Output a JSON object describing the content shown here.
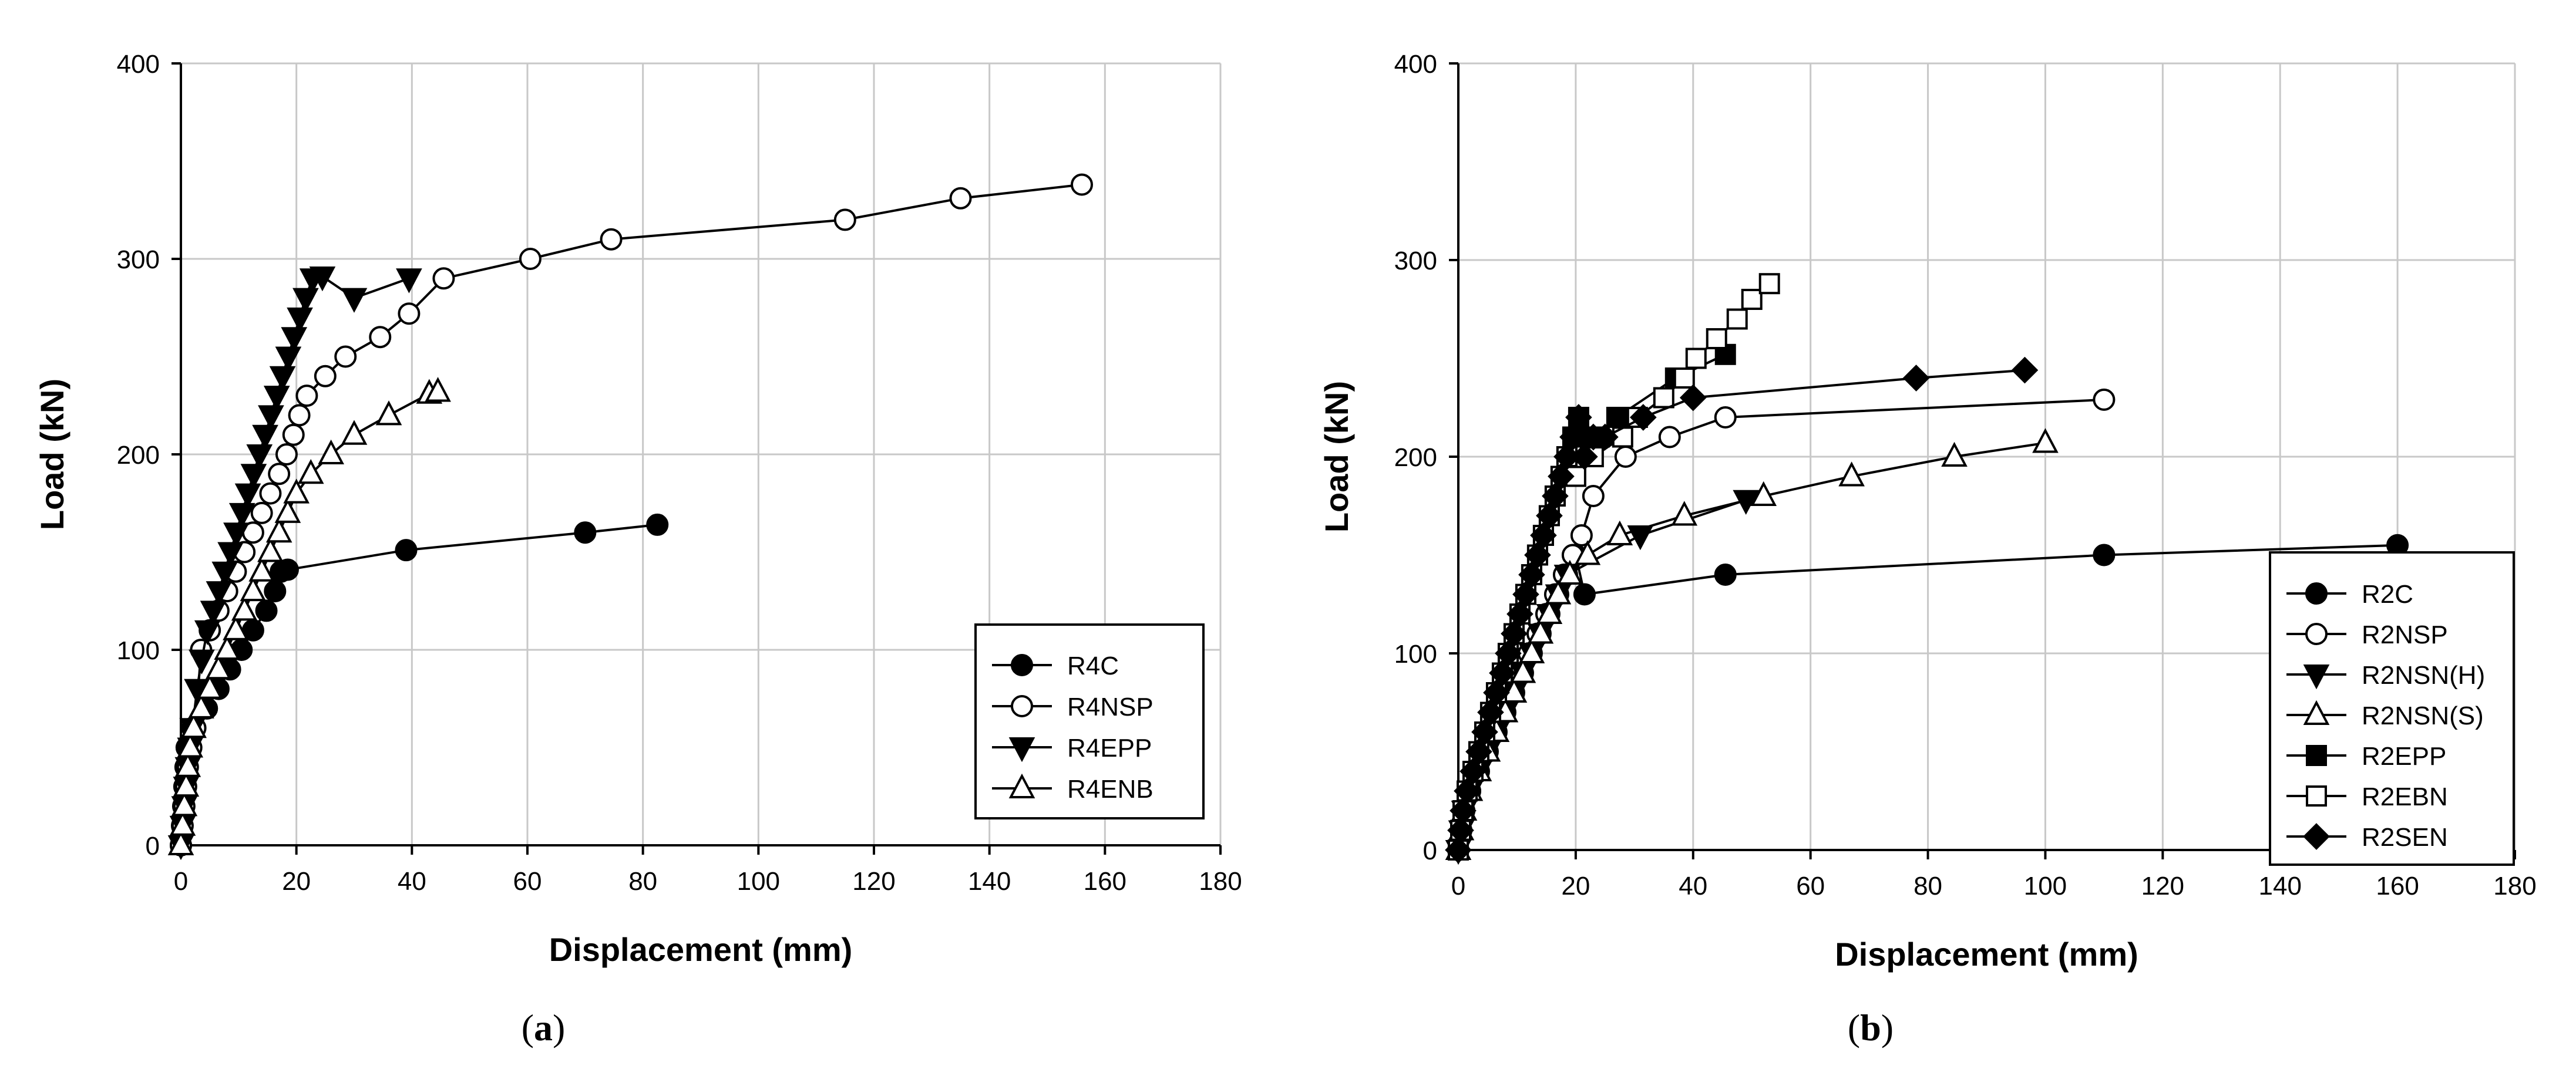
{
  "chart_data": [
    {
      "type": "line",
      "panel_label": {
        "open": "(",
        "letter": "a",
        "close": ")"
      },
      "xlabel": "Displacement (mm)",
      "ylabel": "Load (kN)",
      "xlim": [
        0,
        180
      ],
      "ylim": [
        0,
        400
      ],
      "xticks": [
        0,
        20,
        40,
        60,
        80,
        100,
        120,
        140,
        160,
        180
      ],
      "yticks": [
        0,
        100,
        200,
        300,
        400
      ],
      "grid": true,
      "legend_position": "lower-right",
      "series": [
        {
          "name": "R4C",
          "marker": "circle-filled",
          "x": [
            0,
            0.2,
            0.4,
            0.6,
            0.8,
            1.0,
            2.0,
            4.5,
            6.5,
            8.5,
            10.5,
            12.5,
            14.8,
            16.3,
            17.3,
            18.5,
            39.0,
            70.0,
            82.5
          ],
          "y": [
            0,
            10,
            20,
            30,
            40,
            50,
            60,
            70,
            80,
            90,
            100,
            110,
            120,
            130,
            140,
            141,
            151,
            160,
            164
          ]
        },
        {
          "name": "R4NSP",
          "marker": "circle-open",
          "x": [
            0,
            0.3,
            0.6,
            0.9,
            1.2,
            1.8,
            2.5,
            3.5,
            5.0,
            6.5,
            8.0,
            9.5,
            11.0,
            12.5,
            14.0,
            15.5,
            17.0,
            18.3,
            19.5,
            20.5,
            21.8,
            25.0,
            28.5,
            34.5,
            39.5,
            45.5,
            60.5,
            74.5,
            115.0,
            135.0,
            156.0
          ],
          "y": [
            0,
            10,
            20,
            30,
            40,
            50,
            60,
            100,
            110,
            120,
            130,
            140,
            150,
            160,
            170,
            180,
            190,
            200,
            210,
            220,
            230,
            240,
            250,
            260,
            272,
            290,
            300,
            310,
            320,
            331,
            338
          ]
        },
        {
          "name": "R4EPP",
          "marker": "triangle-down-filled",
          "x": [
            0,
            0.3,
            0.6,
            0.9,
            1.2,
            1.6,
            2.0,
            2.8,
            3.6,
            4.6,
            5.6,
            6.6,
            7.6,
            8.6,
            9.6,
            10.6,
            11.6,
            12.6,
            13.6,
            14.6,
            15.6,
            16.6,
            17.6,
            18.6,
            19.6,
            20.6,
            21.6,
            22.8,
            24.5,
            30.0,
            39.5
          ],
          "y": [
            0,
            10,
            20,
            30,
            40,
            50,
            60,
            80,
            95,
            110,
            120,
            130,
            140,
            150,
            160,
            170,
            180,
            190,
            200,
            210,
            220,
            230,
            240,
            250,
            260,
            270,
            280,
            290,
            291,
            280,
            290
          ]
        },
        {
          "name": "R4ENB",
          "marker": "triangle-up-open",
          "x": [
            0,
            0.3,
            0.6,
            0.9,
            1.2,
            1.6,
            2.2,
            3.5,
            5.0,
            6.5,
            8.0,
            9.5,
            11.0,
            12.5,
            14.0,
            15.5,
            17.0,
            18.5,
            20.0,
            22.5,
            26.0,
            30.0,
            36.0,
            43.0,
            44.5
          ],
          "y": [
            0,
            10,
            20,
            30,
            40,
            50,
            60,
            70,
            80,
            90,
            100,
            110,
            120,
            130,
            140,
            150,
            160,
            170,
            180,
            190,
            200,
            210,
            220,
            231,
            232
          ]
        }
      ]
    },
    {
      "type": "line",
      "panel_label": {
        "open": "(",
        "letter": "b",
        "close": ")"
      },
      "xlabel": "Displacement (mm)",
      "ylabel": "Load (kN)",
      "xlim": [
        0,
        180
      ],
      "ylim": [
        0,
        400
      ],
      "xticks": [
        0,
        20,
        40,
        60,
        80,
        100,
        120,
        140,
        160,
        180
      ],
      "yticks": [
        0,
        100,
        200,
        300,
        400
      ],
      "grid": true,
      "legend_position": "lower-right",
      "series": [
        {
          "name": "R2C",
          "marker": "circle-filled",
          "x": [
            0,
            0.5,
            1.0,
            2.0,
            3.5,
            5.0,
            6.5,
            8.0,
            9.5,
            11.0,
            12.5,
            14.0,
            15.5,
            17.0,
            18.5,
            20.0,
            21.5,
            45.5,
            110.0,
            160.0
          ],
          "y": [
            0,
            10,
            20,
            30,
            40,
            50,
            60,
            70,
            80,
            90,
            100,
            110,
            120,
            130,
            140,
            150,
            130,
            140,
            150,
            155
          ]
        },
        {
          "name": "R2NSP",
          "marker": "circle-open",
          "x": [
            0,
            0.5,
            1.0,
            2.0,
            3.0,
            4.5,
            6.0,
            7.5,
            9.0,
            10.5,
            12.0,
            13.5,
            15.0,
            16.5,
            18.0,
            19.5,
            21.0,
            23.0,
            28.5,
            36.0,
            45.5,
            110.0
          ],
          "y": [
            0,
            10,
            20,
            30,
            40,
            50,
            60,
            70,
            80,
            90,
            100,
            110,
            120,
            130,
            140,
            150,
            160,
            180,
            200,
            210,
            220,
            229
          ]
        },
        {
          "name": "R2NSN(H)",
          "marker": "triangle-down-filled",
          "x": [
            0,
            0.5,
            1.0,
            2.0,
            3.5,
            5.0,
            6.5,
            8.0,
            9.5,
            11.0,
            12.5,
            14.0,
            15.5,
            17.0,
            18.5,
            31.0,
            49.0
          ],
          "y": [
            0,
            10,
            20,
            30,
            40,
            50,
            60,
            70,
            80,
            90,
            100,
            110,
            120,
            130,
            140,
            160,
            178
          ]
        },
        {
          "name": "R2NSN(S)",
          "marker": "triangle-up-open",
          "x": [
            0,
            0.5,
            1.0,
            2.0,
            3.5,
            5.0,
            6.5,
            8.0,
            9.5,
            11.0,
            12.5,
            14.0,
            15.5,
            17.0,
            19.0,
            22.0,
            27.5,
            38.5,
            52.0,
            67.0,
            84.5,
            100.0
          ],
          "y": [
            0,
            10,
            20,
            30,
            40,
            50,
            60,
            70,
            80,
            90,
            100,
            110,
            120,
            130,
            140,
            150,
            160,
            170,
            180,
            190,
            200,
            207
          ]
        },
        {
          "name": "R2EPP",
          "marker": "square-filled",
          "x": [
            0,
            0.4,
            0.8,
            1.5,
            2.5,
            3.5,
            4.5,
            5.5,
            6.5,
            7.5,
            8.5,
            9.5,
            10.5,
            11.5,
            12.5,
            13.5,
            14.5,
            15.5,
            16.5,
            17.5,
            18.5,
            19.5,
            20.5,
            21.5,
            22.5,
            24.0,
            27.0,
            37.0,
            45.5
          ],
          "y": [
            0,
            10,
            20,
            30,
            40,
            50,
            60,
            70,
            80,
            90,
            100,
            110,
            120,
            130,
            140,
            150,
            160,
            170,
            180,
            190,
            200,
            210,
            220,
            210,
            200,
            210,
            220,
            240,
            252
          ]
        },
        {
          "name": "R2EBN",
          "marker": "square-open",
          "x": [
            0,
            0.4,
            0.8,
            1.5,
            2.5,
            3.5,
            4.5,
            5.5,
            6.5,
            7.5,
            8.5,
            9.5,
            10.5,
            11.5,
            12.5,
            13.5,
            14.5,
            15.5,
            16.5,
            17.5,
            18.5,
            20.0,
            23.0,
            28.0,
            30.5,
            35.0,
            38.5,
            40.5,
            44.0,
            47.5,
            50.0,
            53.0
          ],
          "y": [
            0,
            10,
            20,
            30,
            40,
            50,
            60,
            70,
            80,
            90,
            100,
            110,
            120,
            130,
            140,
            150,
            160,
            170,
            180,
            190,
            200,
            190,
            200,
            210,
            220,
            230,
            240,
            250,
            260,
            270,
            280,
            288
          ]
        },
        {
          "name": "R2SEN",
          "marker": "diamond-filled",
          "x": [
            0,
            0.4,
            0.8,
            1.5,
            2.5,
            3.5,
            4.5,
            5.5,
            6.5,
            7.5,
            8.5,
            9.5,
            10.5,
            11.5,
            12.5,
            13.5,
            14.5,
            15.5,
            16.5,
            17.5,
            18.5,
            19.5,
            20.5,
            21.5,
            23.0,
            25.0,
            31.5,
            40.0,
            78.0,
            96.5
          ],
          "y": [
            0,
            10,
            20,
            30,
            40,
            50,
            60,
            70,
            80,
            90,
            100,
            110,
            120,
            130,
            140,
            150,
            160,
            170,
            180,
            190,
            200,
            210,
            220,
            200,
            210,
            210,
            220,
            230,
            240,
            244
          ]
        }
      ]
    }
  ]
}
